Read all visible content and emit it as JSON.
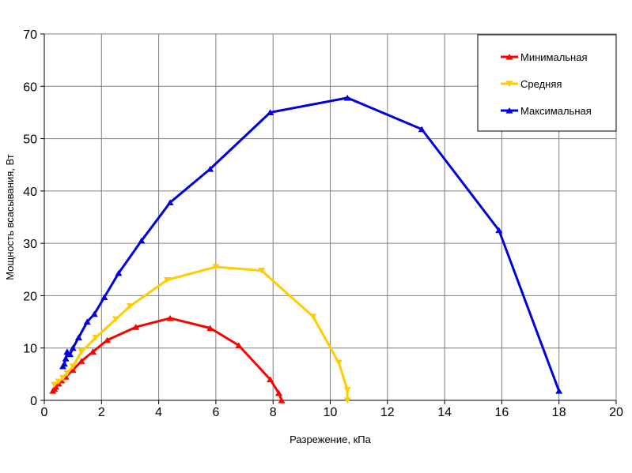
{
  "chart_data": {
    "type": "line",
    "title": "",
    "xlabel": "Разрежение, кПа",
    "ylabel": "Мощность всасывания, Вт",
    "xlim": [
      0,
      20
    ],
    "ylim": [
      0,
      70
    ],
    "xticks": [
      0,
      2,
      4,
      6,
      8,
      10,
      12,
      14,
      16,
      18,
      20
    ],
    "yticks": [
      0,
      10,
      20,
      30,
      40,
      50,
      60,
      70
    ],
    "grid": true,
    "legend": "top-right",
    "series": [
      {
        "name": "Минимальная",
        "color": "#ff0000",
        "marker": "triangle-up",
        "x": [
          0.3,
          0.35,
          0.4,
          0.5,
          0.6,
          0.75,
          1.0,
          1.3,
          1.7,
          2.2,
          3.2,
          4.4,
          5.8,
          6.8,
          7.9,
          8.2,
          8.3
        ],
        "y": [
          1.8,
          2.2,
          2.6,
          3.2,
          3.8,
          4.5,
          5.8,
          7.5,
          9.3,
          11.5,
          14.0,
          15.7,
          13.8,
          10.5,
          4.0,
          1.4,
          0.0
        ]
      },
      {
        "name": "Средняя",
        "color": "#ffcc00",
        "marker": "triangle-down",
        "x": [
          0.35,
          0.5,
          0.65,
          0.8,
          1.0,
          1.3,
          1.8,
          2.5,
          3.0,
          4.3,
          6.0,
          7.6,
          9.4,
          10.3,
          10.6,
          10.6
        ],
        "y": [
          3.0,
          3.6,
          4.3,
          5.2,
          6.5,
          9.3,
          12.0,
          15.5,
          18.0,
          23.0,
          25.5,
          24.8,
          16.0,
          7.2,
          2.0,
          0.0
        ]
      },
      {
        "name": "Максимальная",
        "color": "#0000dd",
        "marker": "triangle-up",
        "x": [
          0.65,
          0.7,
          0.75,
          0.8,
          0.9,
          1.0,
          1.2,
          1.5,
          1.75,
          2.1,
          2.6,
          3.4,
          4.4,
          5.8,
          7.9,
          10.6,
          13.2,
          15.9,
          18.0
        ],
        "y": [
          6.5,
          7.0,
          8.0,
          9.3,
          8.8,
          10.0,
          12.0,
          15.0,
          16.5,
          19.7,
          24.3,
          30.5,
          37.8,
          44.2,
          55.0,
          57.8,
          51.8,
          32.5,
          1.8
        ]
      }
    ]
  }
}
